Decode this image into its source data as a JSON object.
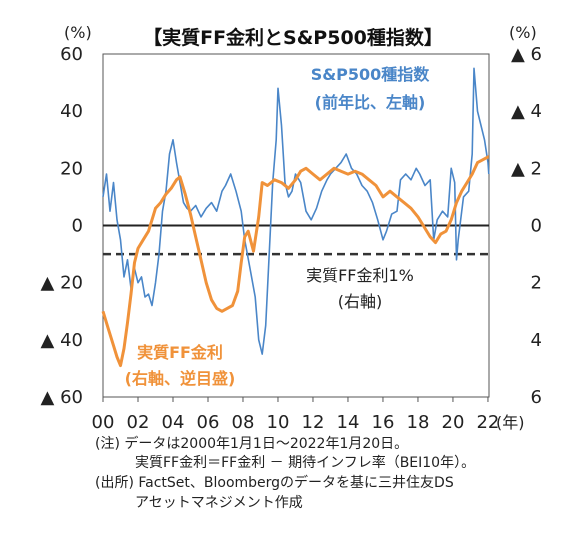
{
  "chart_data": {
    "type": "line",
    "title": "【実質FF金利とS&P500種指数】",
    "left_axis": {
      "unit": "(%)",
      "range": [
        -60,
        60
      ],
      "ticks": [
        {
          "value": 60,
          "label": "60"
        },
        {
          "value": 40,
          "label": "40"
        },
        {
          "value": 20,
          "label": "20"
        },
        {
          "value": 0,
          "label": "0"
        },
        {
          "value": -20,
          "label": "▲ 20"
        },
        {
          "value": -40,
          "label": "▲ 40"
        },
        {
          "value": -60,
          "label": "▲ 60"
        }
      ]
    },
    "right_axis": {
      "unit": "(%)",
      "range": [
        -6,
        6
      ],
      "inverted": true,
      "ticks": [
        {
          "value": -6,
          "label": "▲ 6"
        },
        {
          "value": -4,
          "label": "▲ 4"
        },
        {
          "value": -2,
          "label": "▲ 2"
        },
        {
          "value": 0,
          "label": "0"
        },
        {
          "value": 2,
          "label": "2"
        },
        {
          "value": 4,
          "label": "4"
        },
        {
          "value": 6,
          "label": "6"
        }
      ]
    },
    "x_axis": {
      "range": [
        2000,
        2022.06
      ],
      "unit": "(年)",
      "ticks": [
        {
          "value": 2000,
          "label": "00"
        },
        {
          "value": 2002,
          "label": "02"
        },
        {
          "value": 2004,
          "label": "04"
        },
        {
          "value": 2006,
          "label": "06"
        },
        {
          "value": 2008,
          "label": "08"
        },
        {
          "value": 2010,
          "label": "10"
        },
        {
          "value": 2012,
          "label": "12"
        },
        {
          "value": 2014,
          "label": "14"
        },
        {
          "value": 2016,
          "label": "16"
        },
        {
          "value": 2018,
          "label": "18"
        },
        {
          "value": 2020,
          "label": "20"
        },
        {
          "value": 2022,
          "label": "22"
        }
      ]
    },
    "series": [
      {
        "name": "S&P500種指数",
        "sub": "(前年比、左軸)",
        "axis": "left",
        "color": "#4a86c8",
        "points": [
          [
            2000.0,
            10
          ],
          [
            2000.2,
            18
          ],
          [
            2000.4,
            5
          ],
          [
            2000.6,
            15
          ],
          [
            2000.8,
            2
          ],
          [
            2001.0,
            -5
          ],
          [
            2001.2,
            -18
          ],
          [
            2001.4,
            -12
          ],
          [
            2001.6,
            -22
          ],
          [
            2001.8,
            -15
          ],
          [
            2002.0,
            -20
          ],
          [
            2002.2,
            -18
          ],
          [
            2002.4,
            -25
          ],
          [
            2002.6,
            -24
          ],
          [
            2002.8,
            -28
          ],
          [
            2003.0,
            -20
          ],
          [
            2003.2,
            -10
          ],
          [
            2003.4,
            5
          ],
          [
            2003.6,
            12
          ],
          [
            2003.8,
            25
          ],
          [
            2004.0,
            30
          ],
          [
            2004.2,
            22
          ],
          [
            2004.4,
            15
          ],
          [
            2004.6,
            8
          ],
          [
            2004.8,
            6
          ],
          [
            2005.0,
            5
          ],
          [
            2005.3,
            7
          ],
          [
            2005.6,
            3
          ],
          [
            2005.9,
            6
          ],
          [
            2006.2,
            8
          ],
          [
            2006.5,
            5
          ],
          [
            2006.8,
            12
          ],
          [
            2007.0,
            14
          ],
          [
            2007.3,
            18
          ],
          [
            2007.6,
            12
          ],
          [
            2007.9,
            5
          ],
          [
            2008.1,
            -5
          ],
          [
            2008.4,
            -15
          ],
          [
            2008.7,
            -25
          ],
          [
            2008.9,
            -40
          ],
          [
            2009.1,
            -45
          ],
          [
            2009.3,
            -35
          ],
          [
            2009.5,
            -10
          ],
          [
            2009.7,
            15
          ],
          [
            2009.9,
            30
          ],
          [
            2010.0,
            48
          ],
          [
            2010.2,
            35
          ],
          [
            2010.4,
            15
          ],
          [
            2010.6,
            10
          ],
          [
            2010.8,
            12
          ],
          [
            2011.0,
            18
          ],
          [
            2011.3,
            15
          ],
          [
            2011.6,
            5
          ],
          [
            2011.9,
            2
          ],
          [
            2012.2,
            6
          ],
          [
            2012.5,
            12
          ],
          [
            2012.8,
            16
          ],
          [
            2013.0,
            18
          ],
          [
            2013.3,
            20
          ],
          [
            2013.6,
            22
          ],
          [
            2013.9,
            25
          ],
          [
            2014.2,
            20
          ],
          [
            2014.5,
            18
          ],
          [
            2014.8,
            14
          ],
          [
            2015.1,
            12
          ],
          [
            2015.4,
            8
          ],
          [
            2015.7,
            2
          ],
          [
            2016.0,
            -5
          ],
          [
            2016.2,
            -2
          ],
          [
            2016.5,
            4
          ],
          [
            2016.8,
            5
          ],
          [
            2017.0,
            16
          ],
          [
            2017.3,
            18
          ],
          [
            2017.6,
            16
          ],
          [
            2017.9,
            20
          ],
          [
            2018.1,
            18
          ],
          [
            2018.4,
            14
          ],
          [
            2018.7,
            16
          ],
          [
            2018.9,
            -5
          ],
          [
            2019.1,
            2
          ],
          [
            2019.4,
            5
          ],
          [
            2019.7,
            3
          ],
          [
            2019.9,
            20
          ],
          [
            2020.1,
            15
          ],
          [
            2020.2,
            -12
          ],
          [
            2020.3,
            -5
          ],
          [
            2020.6,
            10
          ],
          [
            2020.9,
            12
          ],
          [
            2021.1,
            25
          ],
          [
            2021.2,
            55
          ],
          [
            2021.4,
            40
          ],
          [
            2021.6,
            35
          ],
          [
            2021.8,
            30
          ],
          [
            2022.0,
            22
          ],
          [
            2022.05,
            18
          ]
        ]
      },
      {
        "name": "実質FF金利",
        "sub": "(右軸、逆目盛)",
        "axis": "right",
        "color": "#f0923a",
        "points": [
          [
            2000.0,
            3.0
          ],
          [
            2000.3,
            3.6
          ],
          [
            2000.6,
            4.2
          ],
          [
            2000.8,
            4.6
          ],
          [
            2001.0,
            4.9
          ],
          [
            2001.2,
            4.3
          ],
          [
            2001.4,
            3.4
          ],
          [
            2001.6,
            2.4
          ],
          [
            2001.8,
            1.3
          ],
          [
            2002.0,
            0.8
          ],
          [
            2002.3,
            0.5
          ],
          [
            2002.6,
            0.2
          ],
          [
            2002.8,
            -0.2
          ],
          [
            2003.0,
            -0.6
          ],
          [
            2003.3,
            -0.8
          ],
          [
            2003.6,
            -1.1
          ],
          [
            2003.9,
            -1.3
          ],
          [
            2004.2,
            -1.6
          ],
          [
            2004.4,
            -1.7
          ],
          [
            2004.7,
            -1.1
          ],
          [
            2005.0,
            -0.4
          ],
          [
            2005.3,
            0.4
          ],
          [
            2005.6,
            1.2
          ],
          [
            2005.9,
            2.0
          ],
          [
            2006.2,
            2.6
          ],
          [
            2006.5,
            2.9
          ],
          [
            2006.8,
            3.0
          ],
          [
            2007.1,
            2.9
          ],
          [
            2007.4,
            2.8
          ],
          [
            2007.7,
            2.3
          ],
          [
            2007.9,
            1.3
          ],
          [
            2008.1,
            0.4
          ],
          [
            2008.3,
            0.2
          ],
          [
            2008.6,
            0.9
          ],
          [
            2008.9,
            -0.3
          ],
          [
            2009.1,
            -1.5
          ],
          [
            2009.4,
            -1.4
          ],
          [
            2009.8,
            -1.6
          ],
          [
            2010.2,
            -1.5
          ],
          [
            2010.6,
            -1.3
          ],
          [
            2011.0,
            -1.6
          ],
          [
            2011.3,
            -1.9
          ],
          [
            2011.6,
            -2.0
          ],
          [
            2012.0,
            -1.8
          ],
          [
            2012.4,
            -1.6
          ],
          [
            2012.8,
            -1.8
          ],
          [
            2013.2,
            -2.0
          ],
          [
            2013.6,
            -1.9
          ],
          [
            2014.0,
            -1.8
          ],
          [
            2014.4,
            -1.9
          ],
          [
            2014.8,
            -1.8
          ],
          [
            2015.2,
            -1.6
          ],
          [
            2015.6,
            -1.4
          ],
          [
            2016.0,
            -1.0
          ],
          [
            2016.4,
            -1.2
          ],
          [
            2016.8,
            -1.0
          ],
          [
            2017.2,
            -0.8
          ],
          [
            2017.6,
            -0.6
          ],
          [
            2018.0,
            -0.3
          ],
          [
            2018.4,
            0.1
          ],
          [
            2018.7,
            0.4
          ],
          [
            2019.0,
            0.6
          ],
          [
            2019.3,
            0.3
          ],
          [
            2019.6,
            0.2
          ],
          [
            2019.9,
            -0.2
          ],
          [
            2020.2,
            -0.8
          ],
          [
            2020.5,
            -1.2
          ],
          [
            2020.8,
            -1.5
          ],
          [
            2021.1,
            -1.8
          ],
          [
            2021.4,
            -2.2
          ],
          [
            2021.7,
            -2.3
          ],
          [
            2022.0,
            -2.4
          ],
          [
            2022.05,
            -2.4
          ]
        ]
      }
    ],
    "reference_line": {
      "name": "実質FF金利1%",
      "sub": "(右軸)",
      "axis": "right",
      "value": 1,
      "color": "#333333"
    },
    "notes": [
      "(注) データは2000年1月1日～2022年1月20日。",
      "実質FF金利＝FF金利 － 期待インフレ率（BEI10年）。",
      "(出所) FactSet、Bloombergのデータを基に三井住友DS",
      "アセットマネジメント作成"
    ]
  }
}
